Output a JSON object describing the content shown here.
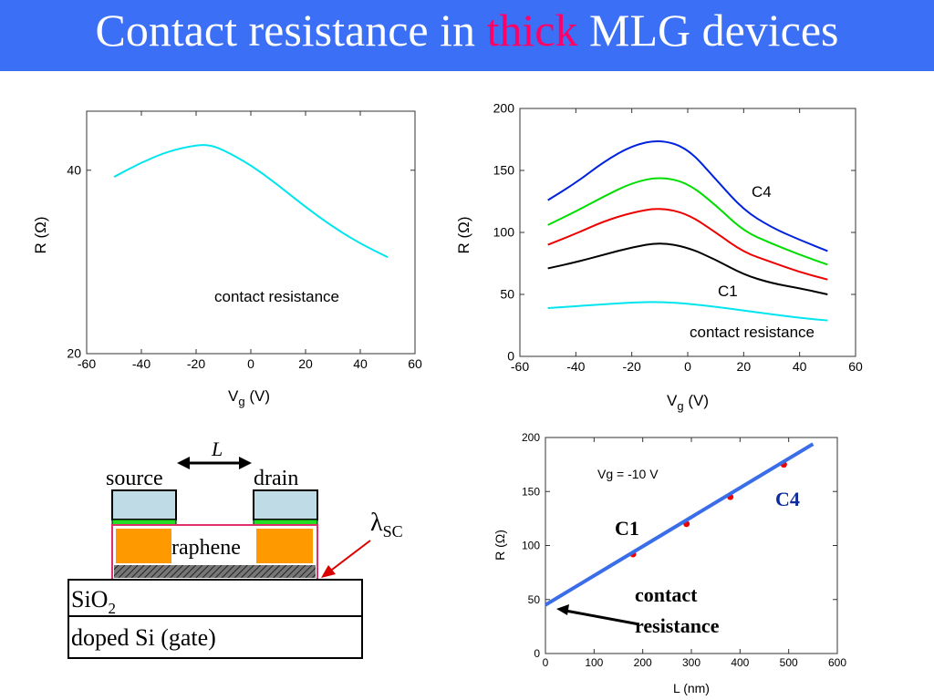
{
  "slide": {
    "title_pre": "Contact resistance in ",
    "title_highlight": "thick",
    "title_post": " MLG devices"
  },
  "colors": {
    "title_bg": "#3b6ff5",
    "highlight": "#ff0066",
    "cyan": "#00e5ee",
    "blue": "#0022dd",
    "green": "#00dd00",
    "red": "#ee0000",
    "black": "#000000",
    "fit_line": "#3a6ee8"
  },
  "chart_data": [
    {
      "type": "line",
      "xlabel_main": "V",
      "xlabel_sub": "g",
      "xlabel_unit": " (V)",
      "ylabel": "R (Ω)",
      "xlim": [
        -60,
        60
      ],
      "ylim": [
        20,
        50
      ],
      "yscale": "log",
      "xticks": [
        -60,
        -40,
        -20,
        0,
        20,
        40,
        60
      ],
      "yticks": [
        20,
        40
      ],
      "annotation": "contact resistance",
      "series": [
        {
          "color": "#00e5ee",
          "x": [
            -50,
            -40,
            -30,
            -20,
            -15,
            -10,
            0,
            10,
            20,
            30,
            40,
            50
          ],
          "y": [
            39,
            41.2,
            43,
            44,
            44,
            43.2,
            40.8,
            37.8,
            34.8,
            32.3,
            30.3,
            28.8
          ]
        }
      ]
    },
    {
      "type": "line",
      "xlabel_main": "V",
      "xlabel_sub": "g",
      "xlabel_unit": " (V)",
      "ylabel": "R (Ω)",
      "xlim": [
        -60,
        60
      ],
      "ylim": [
        0,
        200
      ],
      "xticks": [
        -60,
        -40,
        -20,
        0,
        20,
        40,
        60
      ],
      "yticks": [
        0,
        50,
        100,
        150,
        200
      ],
      "labels": [
        "C4",
        "C1",
        "contact resistance"
      ],
      "series": [
        {
          "color": "#0022dd",
          "x": [
            -50,
            -40,
            -30,
            -20,
            -10,
            0,
            10,
            20,
            30,
            40,
            50
          ],
          "y": [
            126,
            140,
            157,
            170,
            175,
            168,
            143,
            118,
            104,
            94,
            85
          ]
        },
        {
          "color": "#00dd00",
          "x": [
            -50,
            -40,
            -30,
            -20,
            -10,
            0,
            10,
            20,
            30,
            40,
            50
          ],
          "y": [
            106,
            117,
            129,
            140,
            145,
            140,
            122,
            101,
            91,
            82,
            74
          ]
        },
        {
          "color": "#ee0000",
          "x": [
            -50,
            -40,
            -30,
            -20,
            -10,
            0,
            10,
            20,
            30,
            40,
            50
          ],
          "y": [
            90,
            99,
            109,
            116,
            120,
            115,
            100,
            84,
            76,
            68,
            62
          ]
        },
        {
          "color": "#000000",
          "x": [
            -50,
            -40,
            -30,
            -20,
            -10,
            0,
            10,
            20,
            30,
            40,
            50
          ],
          "y": [
            71,
            76,
            82,
            88,
            92,
            88,
            78,
            66,
            59,
            55,
            50
          ]
        },
        {
          "color": "#00e5ee",
          "x": [
            -50,
            -40,
            -30,
            -20,
            -10,
            0,
            10,
            20,
            30,
            40,
            50
          ],
          "y": [
            39,
            40.5,
            42,
            43.5,
            44,
            42.5,
            40,
            37,
            34,
            31,
            29
          ]
        }
      ]
    },
    {
      "type": "scatter",
      "xlabel": "L (nm)",
      "ylabel": "R (Ω)",
      "xlim": [
        0,
        600
      ],
      "ylim": [
        0,
        200
      ],
      "xticks": [
        0,
        100,
        200,
        300,
        400,
        500,
        600
      ],
      "yticks": [
        0,
        50,
        100,
        150,
        200
      ],
      "annotation": "Vg = -10 V",
      "point_labels": [
        "C1",
        "C4"
      ],
      "arrow_label_1": "contact",
      "arrow_label_2": "resistance",
      "series": [
        {
          "color": "#ee0000",
          "x": [
            180,
            290,
            380,
            490
          ],
          "y": [
            92,
            120,
            145,
            175
          ]
        }
      ],
      "fit": {
        "color": "#3a6ee8",
        "x": [
          0,
          550
        ],
        "y": [
          45,
          194
        ]
      }
    }
  ],
  "diagram": {
    "L_label": "L",
    "source_label": "source",
    "drain_label": "drain",
    "graphene_label": "raphene",
    "lambda_symbol": "λ",
    "lambda_sub": "SC",
    "sio2_main": "SiO",
    "sio2_sub": "2",
    "gate_label": "doped Si (gate)"
  }
}
